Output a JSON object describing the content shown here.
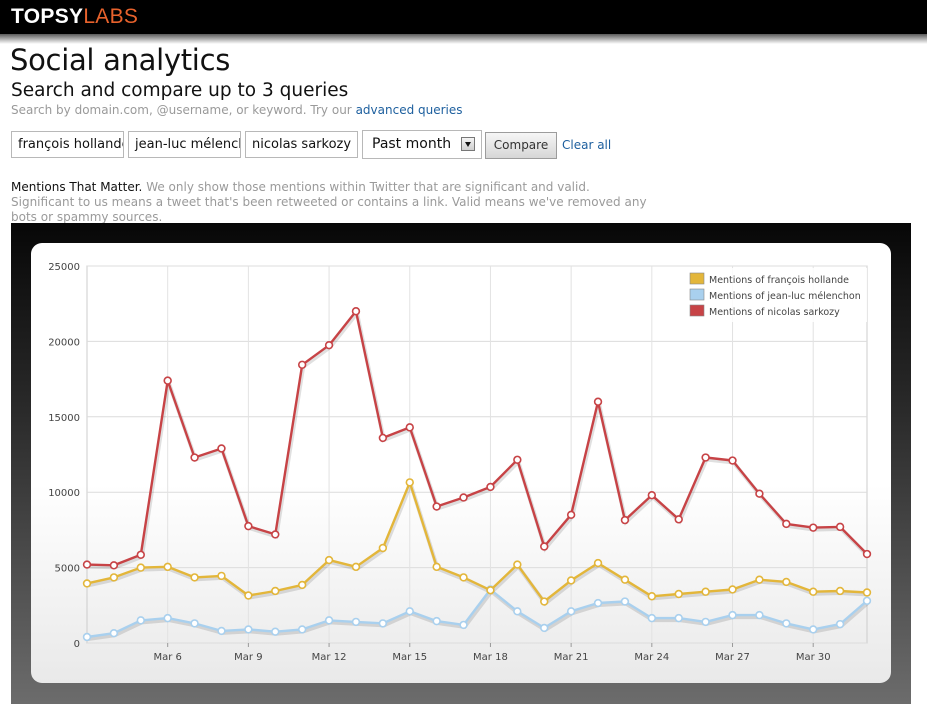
{
  "brand": {
    "name_part1": "TOPSY",
    "name_part2": "LABS"
  },
  "page": {
    "title": "Social analytics",
    "subtitle": "Search and compare up to 3 queries",
    "hint_text": "Search by domain.com, @username, or keyword. Try our",
    "hint_link": "advanced queries"
  },
  "queries": [
    "françois hollande",
    "jean-luc mélenchon",
    "nicolas sarkozy"
  ],
  "controls": {
    "period": "Past month",
    "compare_label": "Compare",
    "clear_label": "Clear all"
  },
  "mentions_note": {
    "lead": "Mentions That Matter.",
    "text": "We only show those mentions within Twitter that are significant and valid. Significant to us means a tweet that's been retweeted or contains a link. Valid means we've removed any bots or spammy sources."
  },
  "colors": {
    "hollande": "#e3b63a",
    "melenchon": "#a9d0ee",
    "sarkozy": "#c74346"
  },
  "chart_data": {
    "type": "line",
    "title": "",
    "xlabel": "",
    "ylabel": "",
    "ylim": [
      0,
      25000
    ],
    "yticks": [
      0,
      5000,
      10000,
      15000,
      20000,
      25000
    ],
    "x": [
      "Mar 3",
      "Mar 4",
      "Mar 5",
      "Mar 6",
      "Mar 7",
      "Mar 8",
      "Mar 9",
      "Mar 10",
      "Mar 11",
      "Mar 12",
      "Mar 13",
      "Mar 14",
      "Mar 15",
      "Mar 16",
      "Mar 17",
      "Mar 18",
      "Mar 19",
      "Mar 20",
      "Mar 21",
      "Mar 22",
      "Mar 23",
      "Mar 24",
      "Mar 25",
      "Mar 26",
      "Mar 27",
      "Mar 28",
      "Mar 29",
      "Mar 30",
      "Mar 31",
      "Apr 1"
    ],
    "xtick_labels": [
      "Mar 6",
      "Mar 9",
      "Mar 12",
      "Mar 15",
      "Mar 18",
      "Mar 21",
      "Mar 24",
      "Mar 27",
      "Mar 30"
    ],
    "legend_position": "top-right",
    "grid": true,
    "series": [
      {
        "name": "Mentions of françois hollande",
        "color": "#e3b63a",
        "values": [
          3950,
          4350,
          5000,
          5050,
          4350,
          4450,
          3150,
          3450,
          3850,
          5500,
          5050,
          6300,
          10650,
          5050,
          4350,
          3500,
          5200,
          2750,
          4150,
          5300,
          4200,
          3100,
          3250,
          3400,
          3550,
          4200,
          4050,
          3400,
          3450,
          3350
        ]
      },
      {
        "name": "Mentions of jean-luc mélenchon",
        "color": "#a9d0ee",
        "values": [
          400,
          650,
          1500,
          1650,
          1300,
          800,
          900,
          750,
          900,
          1500,
          1400,
          1300,
          2100,
          1450,
          1200,
          3550,
          2100,
          1000,
          2100,
          2650,
          2750,
          1650,
          1650,
          1400,
          1850,
          1850,
          1300,
          900,
          1250,
          2800
        ]
      },
      {
        "name": "Mentions of nicolas sarkozy",
        "color": "#c74346",
        "values": [
          5200,
          5150,
          5850,
          17400,
          12300,
          12900,
          7750,
          7200,
          18450,
          19750,
          22000,
          13600,
          14300,
          9050,
          9650,
          10350,
          12150,
          6400,
          8500,
          16000,
          8150,
          9800,
          8200,
          12300,
          12100,
          9900,
          7900,
          7650,
          7700,
          5900
        ]
      }
    ]
  }
}
